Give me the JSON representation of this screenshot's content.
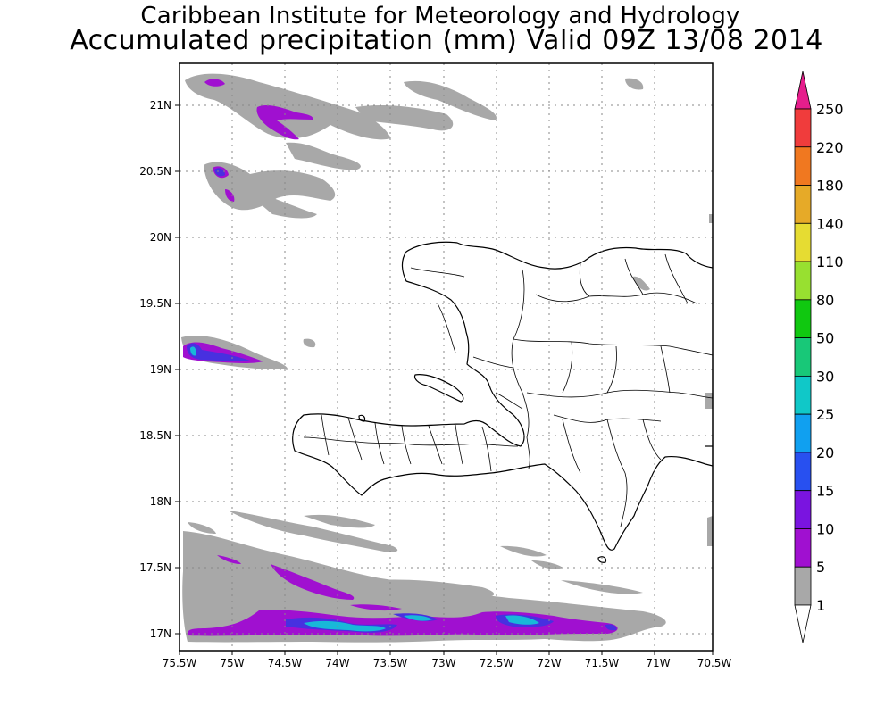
{
  "header": {
    "institute": "Caribbean Institute for Meteorology and Hydrology",
    "product": "Accumulated precipitation (mm) Valid 09Z 13/08 2014"
  },
  "map": {
    "region": "Hispaniola (Haiti / Dominican Republic)",
    "lon_range": [
      -75.5,
      -70.5
    ],
    "lat_range": [
      16.9,
      21.3
    ],
    "lon_labels": [
      "75.5W",
      "75W",
      "74.5W",
      "74W",
      "73.5W",
      "73W",
      "72.5W",
      "72W",
      "71.5W",
      "71W",
      "70.5W"
    ],
    "lat_labels": [
      "21N",
      "20.5N",
      "20N",
      "19.5N",
      "19N",
      "18.5N",
      "18N",
      "17.5N",
      "17N"
    ],
    "grid": "dotted"
  },
  "legend": {
    "levels": [
      "1",
      "5",
      "10",
      "15",
      "20",
      "25",
      "30",
      "50",
      "80",
      "110",
      "140",
      "180",
      "220",
      "250"
    ],
    "colors": [
      "#ffffff",
      "#a8a8a8",
      "#a010d0",
      "#7a14e0",
      "#2850f0",
      "#10a0f0",
      "#10c8c8",
      "#18c878",
      "#10c810",
      "#98e030",
      "#e6dc32",
      "#e6aa28",
      "#f07820",
      "#f03c3c",
      "#e61e8c"
    ]
  }
}
